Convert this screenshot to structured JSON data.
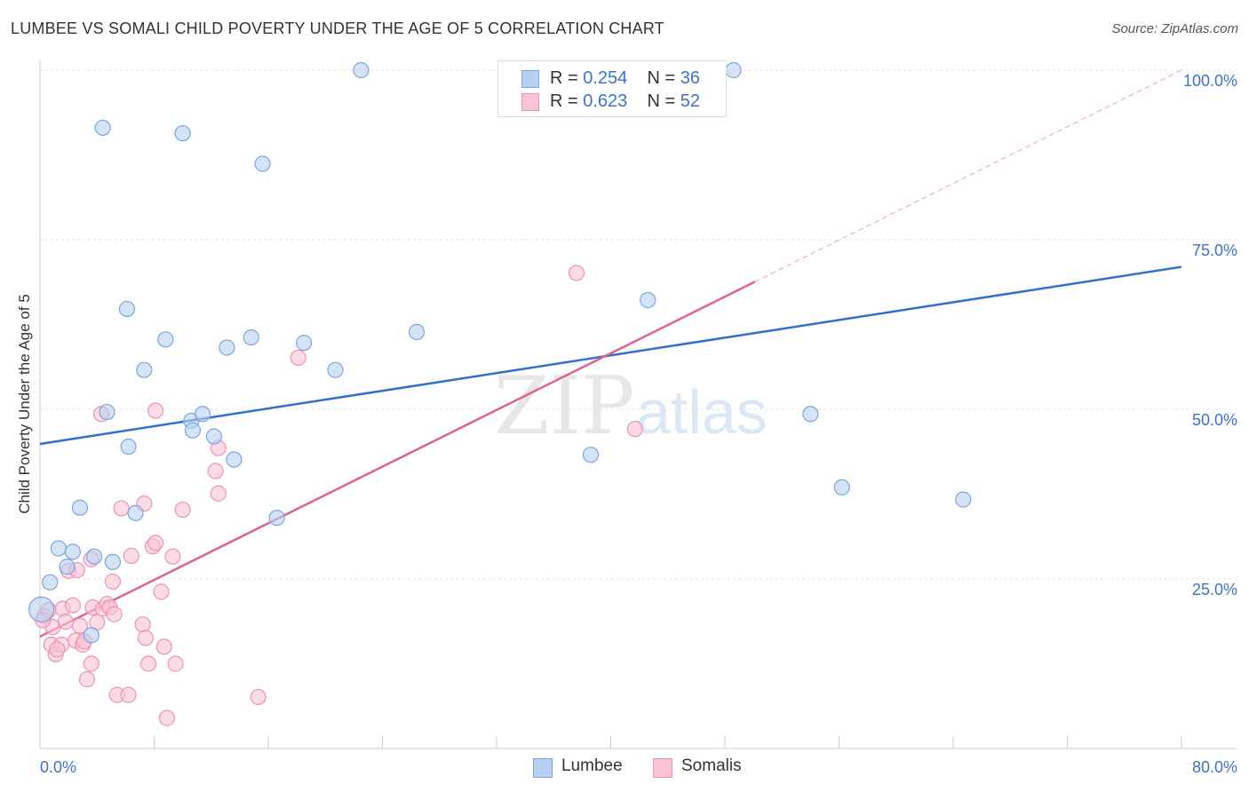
{
  "title": "LUMBEE VS SOMALI CHILD POVERTY UNDER THE AGE OF 5 CORRELATION CHART",
  "source": "Source: ZipAtlas.com",
  "colors": {
    "lumbee_fill": "#b9d1f1",
    "lumbee_stroke": "#7aa6e0",
    "lumbee_line": "#2f6fcf",
    "somali_fill": "#f8c3d3",
    "somali_stroke": "#ee93b0",
    "somali_line": "#e0628e",
    "axis_label": "#3d73c9"
  },
  "legend": {
    "lumbee": {
      "r_label": "R =",
      "r_value": "0.254",
      "n_label": "N =",
      "n_value": "36"
    },
    "somali": {
      "r_label": "R =",
      "r_value": "0.623",
      "n_label": "N =",
      "n_value": "52"
    }
  },
  "bottom_legend": {
    "lumbee": "Lumbee",
    "somali": "Somalis"
  },
  "watermark": {
    "zip": "ZIP",
    "atlas": "atlas"
  },
  "chart_data": {
    "type": "scatter",
    "title": "LUMBEE VS SOMALI CHILD POVERTY UNDER THE AGE OF 5 CORRELATION CHART",
    "xlabel": "",
    "ylabel": "Child Poverty Under the Age of 5",
    "xlim": [
      0,
      80
    ],
    "ylim": [
      0,
      100
    ],
    "x_tick_labels": [
      "0.0%",
      "80.0%"
    ],
    "y_tick_labels": [
      "25.0%",
      "50.0%",
      "75.0%",
      "100.0%"
    ],
    "y_ticks": [
      25,
      50,
      75,
      100
    ],
    "series": [
      {
        "name": "Lumbee",
        "r": 0.254,
        "n": 36,
        "trend": {
          "x0": 0,
          "y0": 44.9,
          "x1": 80,
          "y1": 71.0,
          "dashed_until": 80
        },
        "points": [
          {
            "x": 0.1,
            "y": 20.5,
            "big": true
          },
          {
            "x": 0.7,
            "y": 24.5
          },
          {
            "x": 1.3,
            "y": 29.5
          },
          {
            "x": 1.9,
            "y": 26.8
          },
          {
            "x": 2.3,
            "y": 29.0
          },
          {
            "x": 2.8,
            "y": 35.5
          },
          {
            "x": 3.6,
            "y": 16.7
          },
          {
            "x": 3.8,
            "y": 28.3
          },
          {
            "x": 4.4,
            "y": 91.5
          },
          {
            "x": 4.7,
            "y": 49.6
          },
          {
            "x": 5.1,
            "y": 27.5
          },
          {
            "x": 6.1,
            "y": 64.8
          },
          {
            "x": 6.2,
            "y": 44.5
          },
          {
            "x": 6.7,
            "y": 34.7
          },
          {
            "x": 7.3,
            "y": 55.8
          },
          {
            "x": 8.8,
            "y": 60.3
          },
          {
            "x": 10.0,
            "y": 90.7
          },
          {
            "x": 10.6,
            "y": 48.3
          },
          {
            "x": 10.7,
            "y": 46.9
          },
          {
            "x": 11.4,
            "y": 49.3
          },
          {
            "x": 12.2,
            "y": 46.0
          },
          {
            "x": 13.1,
            "y": 59.1
          },
          {
            "x": 13.6,
            "y": 42.6
          },
          {
            "x": 14.8,
            "y": 60.6
          },
          {
            "x": 15.6,
            "y": 86.2
          },
          {
            "x": 16.6,
            "y": 34.0
          },
          {
            "x": 18.5,
            "y": 59.8
          },
          {
            "x": 20.7,
            "y": 55.8
          },
          {
            "x": 22.5,
            "y": 100.0
          },
          {
            "x": 26.4,
            "y": 61.4
          },
          {
            "x": 38.6,
            "y": 43.3
          },
          {
            "x": 42.6,
            "y": 66.1
          },
          {
            "x": 48.6,
            "y": 100.0
          },
          {
            "x": 54.0,
            "y": 49.3
          },
          {
            "x": 56.2,
            "y": 38.5
          },
          {
            "x": 64.7,
            "y": 36.7
          }
        ]
      },
      {
        "name": "Somalis",
        "r": 0.623,
        "n": 52,
        "trend": {
          "x0": 0,
          "y0": 16.5,
          "x1": 80,
          "y1": 100,
          "solid_until": 50.1
        },
        "points": [
          {
            "x": 0.3,
            "y": 19.5
          },
          {
            "x": 0.6,
            "y": 20.4
          },
          {
            "x": 0.8,
            "y": 15.3
          },
          {
            "x": 0.9,
            "y": 17.9
          },
          {
            "x": 1.1,
            "y": 13.9
          },
          {
            "x": 1.5,
            "y": 15.3
          },
          {
            "x": 1.6,
            "y": 20.6
          },
          {
            "x": 1.8,
            "y": 18.7
          },
          {
            "x": 2.0,
            "y": 26.2
          },
          {
            "x": 2.3,
            "y": 21.1
          },
          {
            "x": 2.5,
            "y": 15.9
          },
          {
            "x": 2.6,
            "y": 26.3
          },
          {
            "x": 2.8,
            "y": 18.1
          },
          {
            "x": 3.0,
            "y": 15.3
          },
          {
            "x": 3.3,
            "y": 10.2
          },
          {
            "x": 3.6,
            "y": 12.5
          },
          {
            "x": 3.6,
            "y": 27.9
          },
          {
            "x": 3.7,
            "y": 20.8
          },
          {
            "x": 4.0,
            "y": 18.6
          },
          {
            "x": 4.3,
            "y": 49.3
          },
          {
            "x": 4.4,
            "y": 20.6
          },
          {
            "x": 4.7,
            "y": 21.3
          },
          {
            "x": 4.9,
            "y": 20.8
          },
          {
            "x": 5.1,
            "y": 24.6
          },
          {
            "x": 5.2,
            "y": 19.8
          },
          {
            "x": 5.4,
            "y": 7.9
          },
          {
            "x": 5.7,
            "y": 35.4
          },
          {
            "x": 6.2,
            "y": 7.9
          },
          {
            "x": 6.4,
            "y": 28.4
          },
          {
            "x": 7.2,
            "y": 18.3
          },
          {
            "x": 7.3,
            "y": 36.1
          },
          {
            "x": 7.4,
            "y": 16.3
          },
          {
            "x": 7.6,
            "y": 12.5
          },
          {
            "x": 7.9,
            "y": 29.8
          },
          {
            "x": 8.1,
            "y": 30.3
          },
          {
            "x": 8.1,
            "y": 49.8
          },
          {
            "x": 8.5,
            "y": 23.1
          },
          {
            "x": 8.7,
            "y": 15.0
          },
          {
            "x": 8.9,
            "y": 4.5
          },
          {
            "x": 9.3,
            "y": 28.3
          },
          {
            "x": 9.5,
            "y": 12.5
          },
          {
            "x": 10.0,
            "y": 35.2
          },
          {
            "x": 12.3,
            "y": 40.9
          },
          {
            "x": 12.5,
            "y": 37.6
          },
          {
            "x": 12.5,
            "y": 44.3
          },
          {
            "x": 15.3,
            "y": 7.6
          },
          {
            "x": 18.1,
            "y": 57.6
          },
          {
            "x": 37.6,
            "y": 70.1
          },
          {
            "x": 41.7,
            "y": 47.1
          },
          {
            "x": 0.2,
            "y": 18.9
          },
          {
            "x": 1.2,
            "y": 14.6
          },
          {
            "x": 3.1,
            "y": 15.8
          }
        ]
      }
    ]
  }
}
